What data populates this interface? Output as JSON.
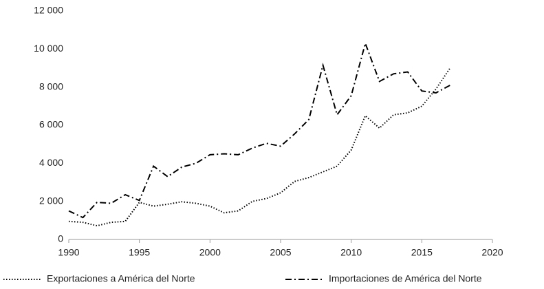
{
  "chart_data": {
    "type": "line",
    "x": [
      1990,
      1991,
      1992,
      1993,
      1994,
      1995,
      1996,
      1997,
      1998,
      1999,
      2000,
      2001,
      2002,
      2003,
      2004,
      2005,
      2006,
      2007,
      2008,
      2009,
      2010,
      2011,
      2012,
      2013,
      2014,
      2015,
      2016,
      2017
    ],
    "series": [
      {
        "name": "Exportaciones a América del Norte",
        "color": "#000000",
        "style": "dotted",
        "values": [
          950,
          900,
          720,
          900,
          950,
          1950,
          1750,
          1850,
          1980,
          1900,
          1750,
          1400,
          1500,
          2000,
          2150,
          2450,
          3050,
          3250,
          3550,
          3850,
          4700,
          6500,
          5850,
          6550,
          6650,
          7000,
          7900,
          9000
        ]
      },
      {
        "name": "Importaciones de América del Norte",
        "color": "#000000",
        "style": "dashdot",
        "values": [
          1500,
          1150,
          1950,
          1900,
          2350,
          2050,
          3850,
          3300,
          3800,
          4000,
          4450,
          4500,
          4450,
          4800,
          5050,
          4900,
          5550,
          6300,
          9150,
          6550,
          7550,
          10300,
          8300,
          8700,
          8800,
          7800,
          7700,
          8100
        ]
      }
    ],
    "xlim": [
      1990,
      2020
    ],
    "xticks": [
      1990,
      1995,
      2000,
      2005,
      2010,
      2015,
      2020
    ],
    "ylim": [
      0,
      12000
    ],
    "yticks": [
      0,
      {
        "value": 2000,
        "label": "2 000"
      },
      {
        "value": 4000,
        "label": "4 000"
      },
      {
        "value": 6000,
        "label": "6 000"
      },
      {
        "value": 8000,
        "label": "8 000"
      },
      {
        "value": 10000,
        "label": "10 000"
      },
      {
        "value": 12000,
        "label": "12 000"
      }
    ],
    "grid": false,
    "legend": "bottom"
  }
}
